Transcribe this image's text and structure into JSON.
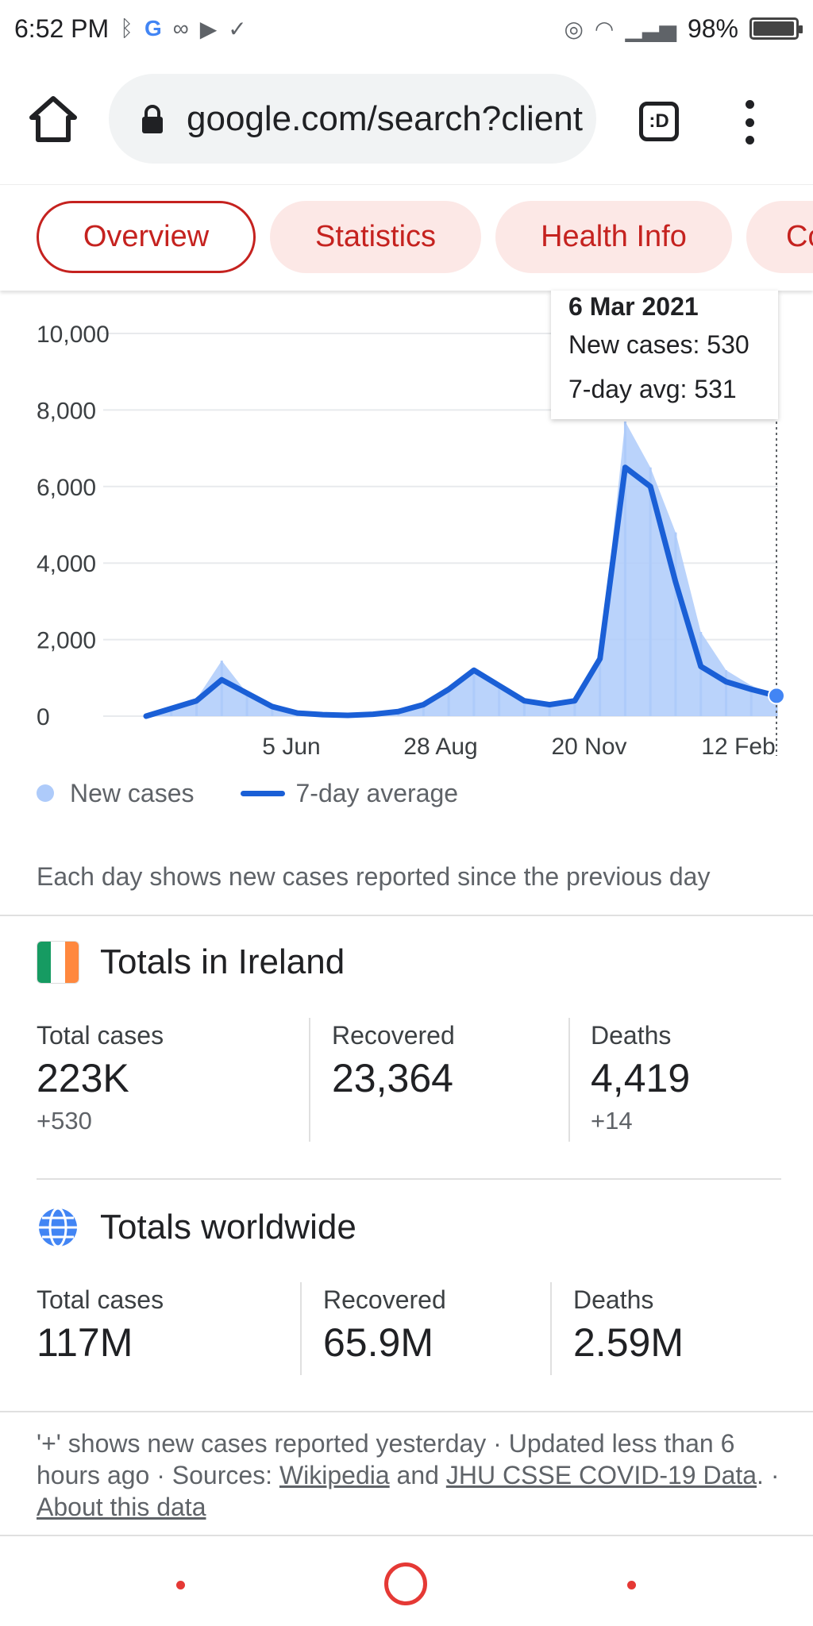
{
  "status_bar": {
    "time": "6:52 PM",
    "battery": "98%",
    "battery_level": 0.98,
    "icons": [
      "bluetooth-icon",
      "google-icon",
      "voicemail-icon",
      "youtube-icon",
      "check-icon",
      "location-icon",
      "wifi-icon",
      "signal-icon",
      "battery-icon"
    ]
  },
  "browser": {
    "url": "google.com/search?client",
    "tab_button_label": ":D"
  },
  "tabs": [
    {
      "label": "Overview",
      "active": true
    },
    {
      "label": "Statistics",
      "active": false
    },
    {
      "label": "Health Info",
      "active": false
    },
    {
      "label": "Co",
      "active": false
    }
  ],
  "chart_data": {
    "type": "line",
    "title": "",
    "xlabel": "",
    "ylabel": "",
    "ylim": [
      0,
      10000
    ],
    "y_ticks": [
      0,
      2000,
      4000,
      6000,
      8000,
      10000
    ],
    "y_tick_labels": [
      "0",
      "2,000",
      "4,000",
      "6,000",
      "8,000",
      "10,000"
    ],
    "x_tick_labels": [
      "5 Jun",
      "28 Aug",
      "20 Nov",
      "12 Feb"
    ],
    "grid": true,
    "legend_position": "bottom-left",
    "x": [
      "29 Feb",
      "15 Mar",
      "1 Apr",
      "10 Apr",
      "15 Apr",
      "1 May",
      "15 May",
      "5 Jun",
      "1 Jul",
      "1 Aug",
      "28 Aug",
      "15 Sep",
      "1 Oct",
      "10 Oct",
      "20 Oct",
      "1 Nov",
      "20 Nov",
      "10 Dec",
      "25 Dec",
      "1 Jan",
      "8 Jan",
      "12 Jan",
      "20 Jan",
      "1 Feb",
      "12 Feb",
      "6 Mar"
    ],
    "series": [
      {
        "name": "New cases",
        "style": "bars",
        "color": "#aecbfa",
        "values": [
          0,
          250,
          450,
          1450,
          600,
          250,
          80,
          40,
          20,
          50,
          120,
          300,
          700,
          1250,
          800,
          400,
          300,
          400,
          1500,
          7700,
          6500,
          4800,
          2200,
          1200,
          800,
          530
        ]
      },
      {
        "name": "7-day average",
        "style": "line",
        "color": "#1a5fd6",
        "values": [
          0,
          200,
          400,
          950,
          600,
          250,
          80,
          40,
          20,
          50,
          120,
          300,
          700,
          1200,
          800,
          400,
          300,
          400,
          1500,
          6500,
          6000,
          3500,
          1300,
          900,
          700,
          531
        ]
      }
    ]
  },
  "tooltip": {
    "date": "6 Mar 2021",
    "new_cases": "New cases: 530",
    "avg": "7-day avg: 531"
  },
  "legend": {
    "new_cases": "New cases",
    "avg": "7-day average"
  },
  "note": "Each day shows new cases reported since the previous day",
  "ireland": {
    "title": "Totals in Ireland",
    "stats": [
      {
        "label": "Total cases",
        "value": "223K",
        "delta": "+530"
      },
      {
        "label": "Recovered",
        "value": "23,364",
        "delta": ""
      },
      {
        "label": "Deaths",
        "value": "4,419",
        "delta": "+14"
      }
    ]
  },
  "worldwide": {
    "title": "Totals worldwide",
    "stats": [
      {
        "label": "Total cases",
        "value": "117M"
      },
      {
        "label": "Recovered",
        "value": "65.9M"
      },
      {
        "label": "Deaths",
        "value": "2.59M"
      }
    ]
  },
  "footer": {
    "part1": "'+' shows new cases reported yesterday  ·  Updated less than 6 hours ago  ·  Sources: ",
    "link1": "Wikipedia",
    "part2": " and ",
    "link2": "JHU CSSE COVID-19 Data",
    "part3": ".  ·  ",
    "link3": "About this data"
  }
}
